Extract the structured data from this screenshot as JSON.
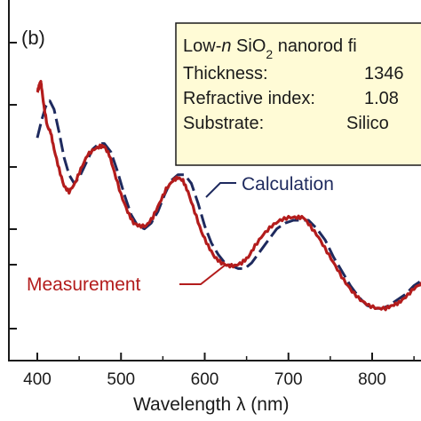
{
  "chart_data": {
    "type": "line",
    "panel_label": "(b)",
    "xlabel": "Wavelength λ (nm)",
    "x_ticks": [
      400,
      500,
      600,
      700,
      800
    ],
    "xlim": [
      388,
      870
    ],
    "ylim": [
      0,
      1
    ],
    "series": [
      {
        "name": "Measurement",
        "color": "#b31c1c",
        "style": "solid",
        "points": [
          [
            400,
            0.8
          ],
          [
            402,
            0.82
          ],
          [
            404,
            0.84
          ],
          [
            405,
            0.82
          ],
          [
            408,
            0.75
          ],
          [
            412,
            0.68
          ],
          [
            416,
            0.66
          ],
          [
            420,
            0.6
          ],
          [
            426,
            0.53
          ],
          [
            432,
            0.47
          ],
          [
            438,
            0.45
          ],
          [
            445,
            0.48
          ],
          [
            452,
            0.53
          ],
          [
            460,
            0.58
          ],
          [
            468,
            0.6
          ],
          [
            475,
            0.61
          ],
          [
            480,
            0.61
          ],
          [
            486,
            0.58
          ],
          [
            492,
            0.52
          ],
          [
            500,
            0.44
          ],
          [
            508,
            0.38
          ],
          [
            515,
            0.34
          ],
          [
            522,
            0.33
          ],
          [
            530,
            0.33
          ],
          [
            538,
            0.36
          ],
          [
            546,
            0.41
          ],
          [
            554,
            0.46
          ],
          [
            562,
            0.49
          ],
          [
            568,
            0.5
          ],
          [
            574,
            0.49
          ],
          [
            580,
            0.45
          ],
          [
            588,
            0.38
          ],
          [
            596,
            0.31
          ],
          [
            604,
            0.26
          ],
          [
            612,
            0.22
          ],
          [
            620,
            0.2
          ],
          [
            628,
            0.19
          ],
          [
            636,
            0.19
          ],
          [
            644,
            0.2
          ],
          [
            652,
            0.22
          ],
          [
            660,
            0.26
          ],
          [
            670,
            0.3
          ],
          [
            680,
            0.33
          ],
          [
            690,
            0.35
          ],
          [
            700,
            0.36
          ],
          [
            710,
            0.36
          ],
          [
            718,
            0.36
          ],
          [
            726,
            0.33
          ],
          [
            736,
            0.29
          ],
          [
            746,
            0.24
          ],
          [
            756,
            0.19
          ],
          [
            766,
            0.14
          ],
          [
            776,
            0.1
          ],
          [
            786,
            0.07
          ],
          [
            796,
            0.05
          ],
          [
            806,
            0.04
          ],
          [
            816,
            0.04
          ],
          [
            824,
            0.05
          ],
          [
            832,
            0.06
          ],
          [
            840,
            0.08
          ],
          [
            850,
            0.11
          ],
          [
            860,
            0.13
          ],
          [
            870,
            0.14
          ]
        ]
      },
      {
        "name": "Calculation",
        "color": "#1e2a5e",
        "style": "dashed",
        "points": [
          [
            400,
            0.64
          ],
          [
            405,
            0.7
          ],
          [
            410,
            0.75
          ],
          [
            415,
            0.77
          ],
          [
            420,
            0.74
          ],
          [
            426,
            0.66
          ],
          [
            432,
            0.57
          ],
          [
            438,
            0.51
          ],
          [
            444,
            0.48
          ],
          [
            450,
            0.5
          ],
          [
            458,
            0.55
          ],
          [
            466,
            0.6
          ],
          [
            474,
            0.62
          ],
          [
            480,
            0.62
          ],
          [
            488,
            0.59
          ],
          [
            496,
            0.52
          ],
          [
            504,
            0.44
          ],
          [
            512,
            0.37
          ],
          [
            520,
            0.33
          ],
          [
            528,
            0.32
          ],
          [
            536,
            0.34
          ],
          [
            544,
            0.38
          ],
          [
            552,
            0.44
          ],
          [
            560,
            0.49
          ],
          [
            568,
            0.51
          ],
          [
            576,
            0.51
          ],
          [
            584,
            0.48
          ],
          [
            592,
            0.41
          ],
          [
            600,
            0.33
          ],
          [
            608,
            0.27
          ],
          [
            616,
            0.23
          ],
          [
            624,
            0.2
          ],
          [
            632,
            0.19
          ],
          [
            640,
            0.18
          ],
          [
            648,
            0.18
          ],
          [
            656,
            0.2
          ],
          [
            666,
            0.24
          ],
          [
            676,
            0.28
          ],
          [
            686,
            0.32
          ],
          [
            696,
            0.34
          ],
          [
            706,
            0.35
          ],
          [
            716,
            0.35
          ],
          [
            724,
            0.35
          ],
          [
            734,
            0.32
          ],
          [
            744,
            0.28
          ],
          [
            754,
            0.22
          ],
          [
            764,
            0.17
          ],
          [
            774,
            0.12
          ],
          [
            784,
            0.08
          ],
          [
            794,
            0.05
          ],
          [
            804,
            0.04
          ],
          [
            812,
            0.04
          ],
          [
            820,
            0.05
          ],
          [
            830,
            0.07
          ],
          [
            840,
            0.09
          ],
          [
            850,
            0.12
          ],
          [
            860,
            0.14
          ],
          [
            870,
            0.15
          ]
        ]
      }
    ],
    "info_box": {
      "line1_prefix": "Low-",
      "line1_italic": "n",
      "line1_mid": " SiO",
      "line1_sub": "2",
      "line1_suffix": " nanorod fi",
      "rows": [
        {
          "label": "Thickness:",
          "value": "1346"
        },
        {
          "label": "Refractive index:",
          "value": "1.08"
        },
        {
          "label": "Substrate:",
          "value": "Silico"
        }
      ]
    }
  }
}
